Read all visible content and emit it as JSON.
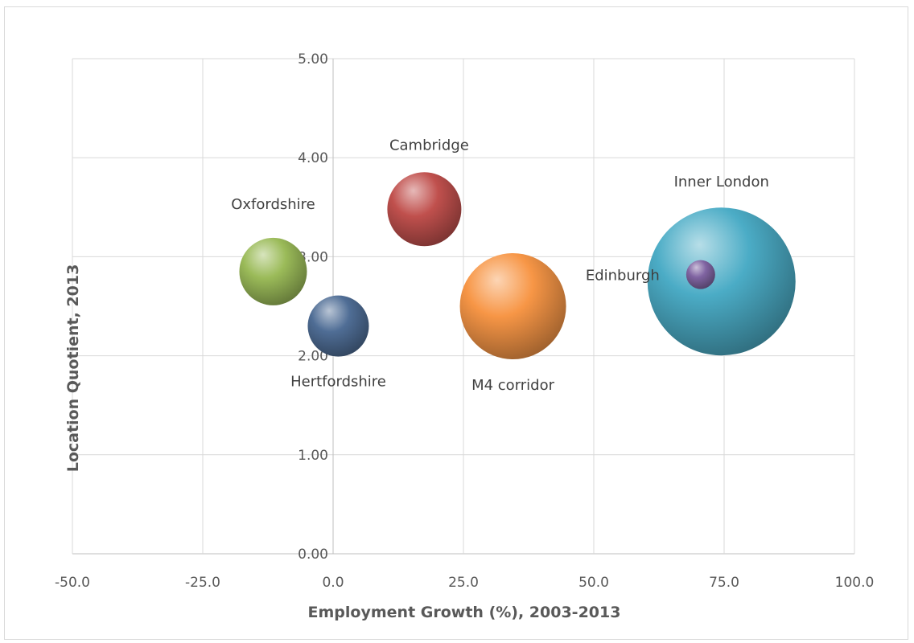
{
  "chart_data": {
    "type": "bubble",
    "title": "",
    "xlabel": "Employment Growth (%), 2003-2013",
    "ylabel": "Location Quotient, 2013",
    "xlim": [
      -50,
      100
    ],
    "ylim": [
      0,
      5
    ],
    "x_ticks": [
      "-50.0",
      "-25.0",
      "0.0",
      "25.0",
      "50.0",
      "75.0",
      "100.0"
    ],
    "y_ticks": [
      "0.00",
      "1.00",
      "2.00",
      "3.00",
      "4.00",
      "5.00"
    ],
    "grid": true,
    "legend": "none",
    "points": [
      {
        "label": "Oxfordshire",
        "x": -11.5,
        "y": 2.85,
        "size": 42,
        "color": "#9bbb59"
      },
      {
        "label": "Hertfordshire",
        "x": 1.0,
        "y": 2.3,
        "size": 38,
        "color": "#4f6d95"
      },
      {
        "label": "Cambridge",
        "x": 17.5,
        "y": 3.48,
        "size": 46,
        "color": "#c0504d"
      },
      {
        "label": "M4 corridor",
        "x": 34.5,
        "y": 2.5,
        "size": 66,
        "color": "#f79646"
      },
      {
        "label": "Inner London",
        "x": 74.5,
        "y": 2.75,
        "size": 92,
        "color": "#4bacc6"
      },
      {
        "label": "Edinburgh",
        "x": 70.5,
        "y": 2.82,
        "size": 18,
        "color": "#8064a2"
      }
    ]
  }
}
